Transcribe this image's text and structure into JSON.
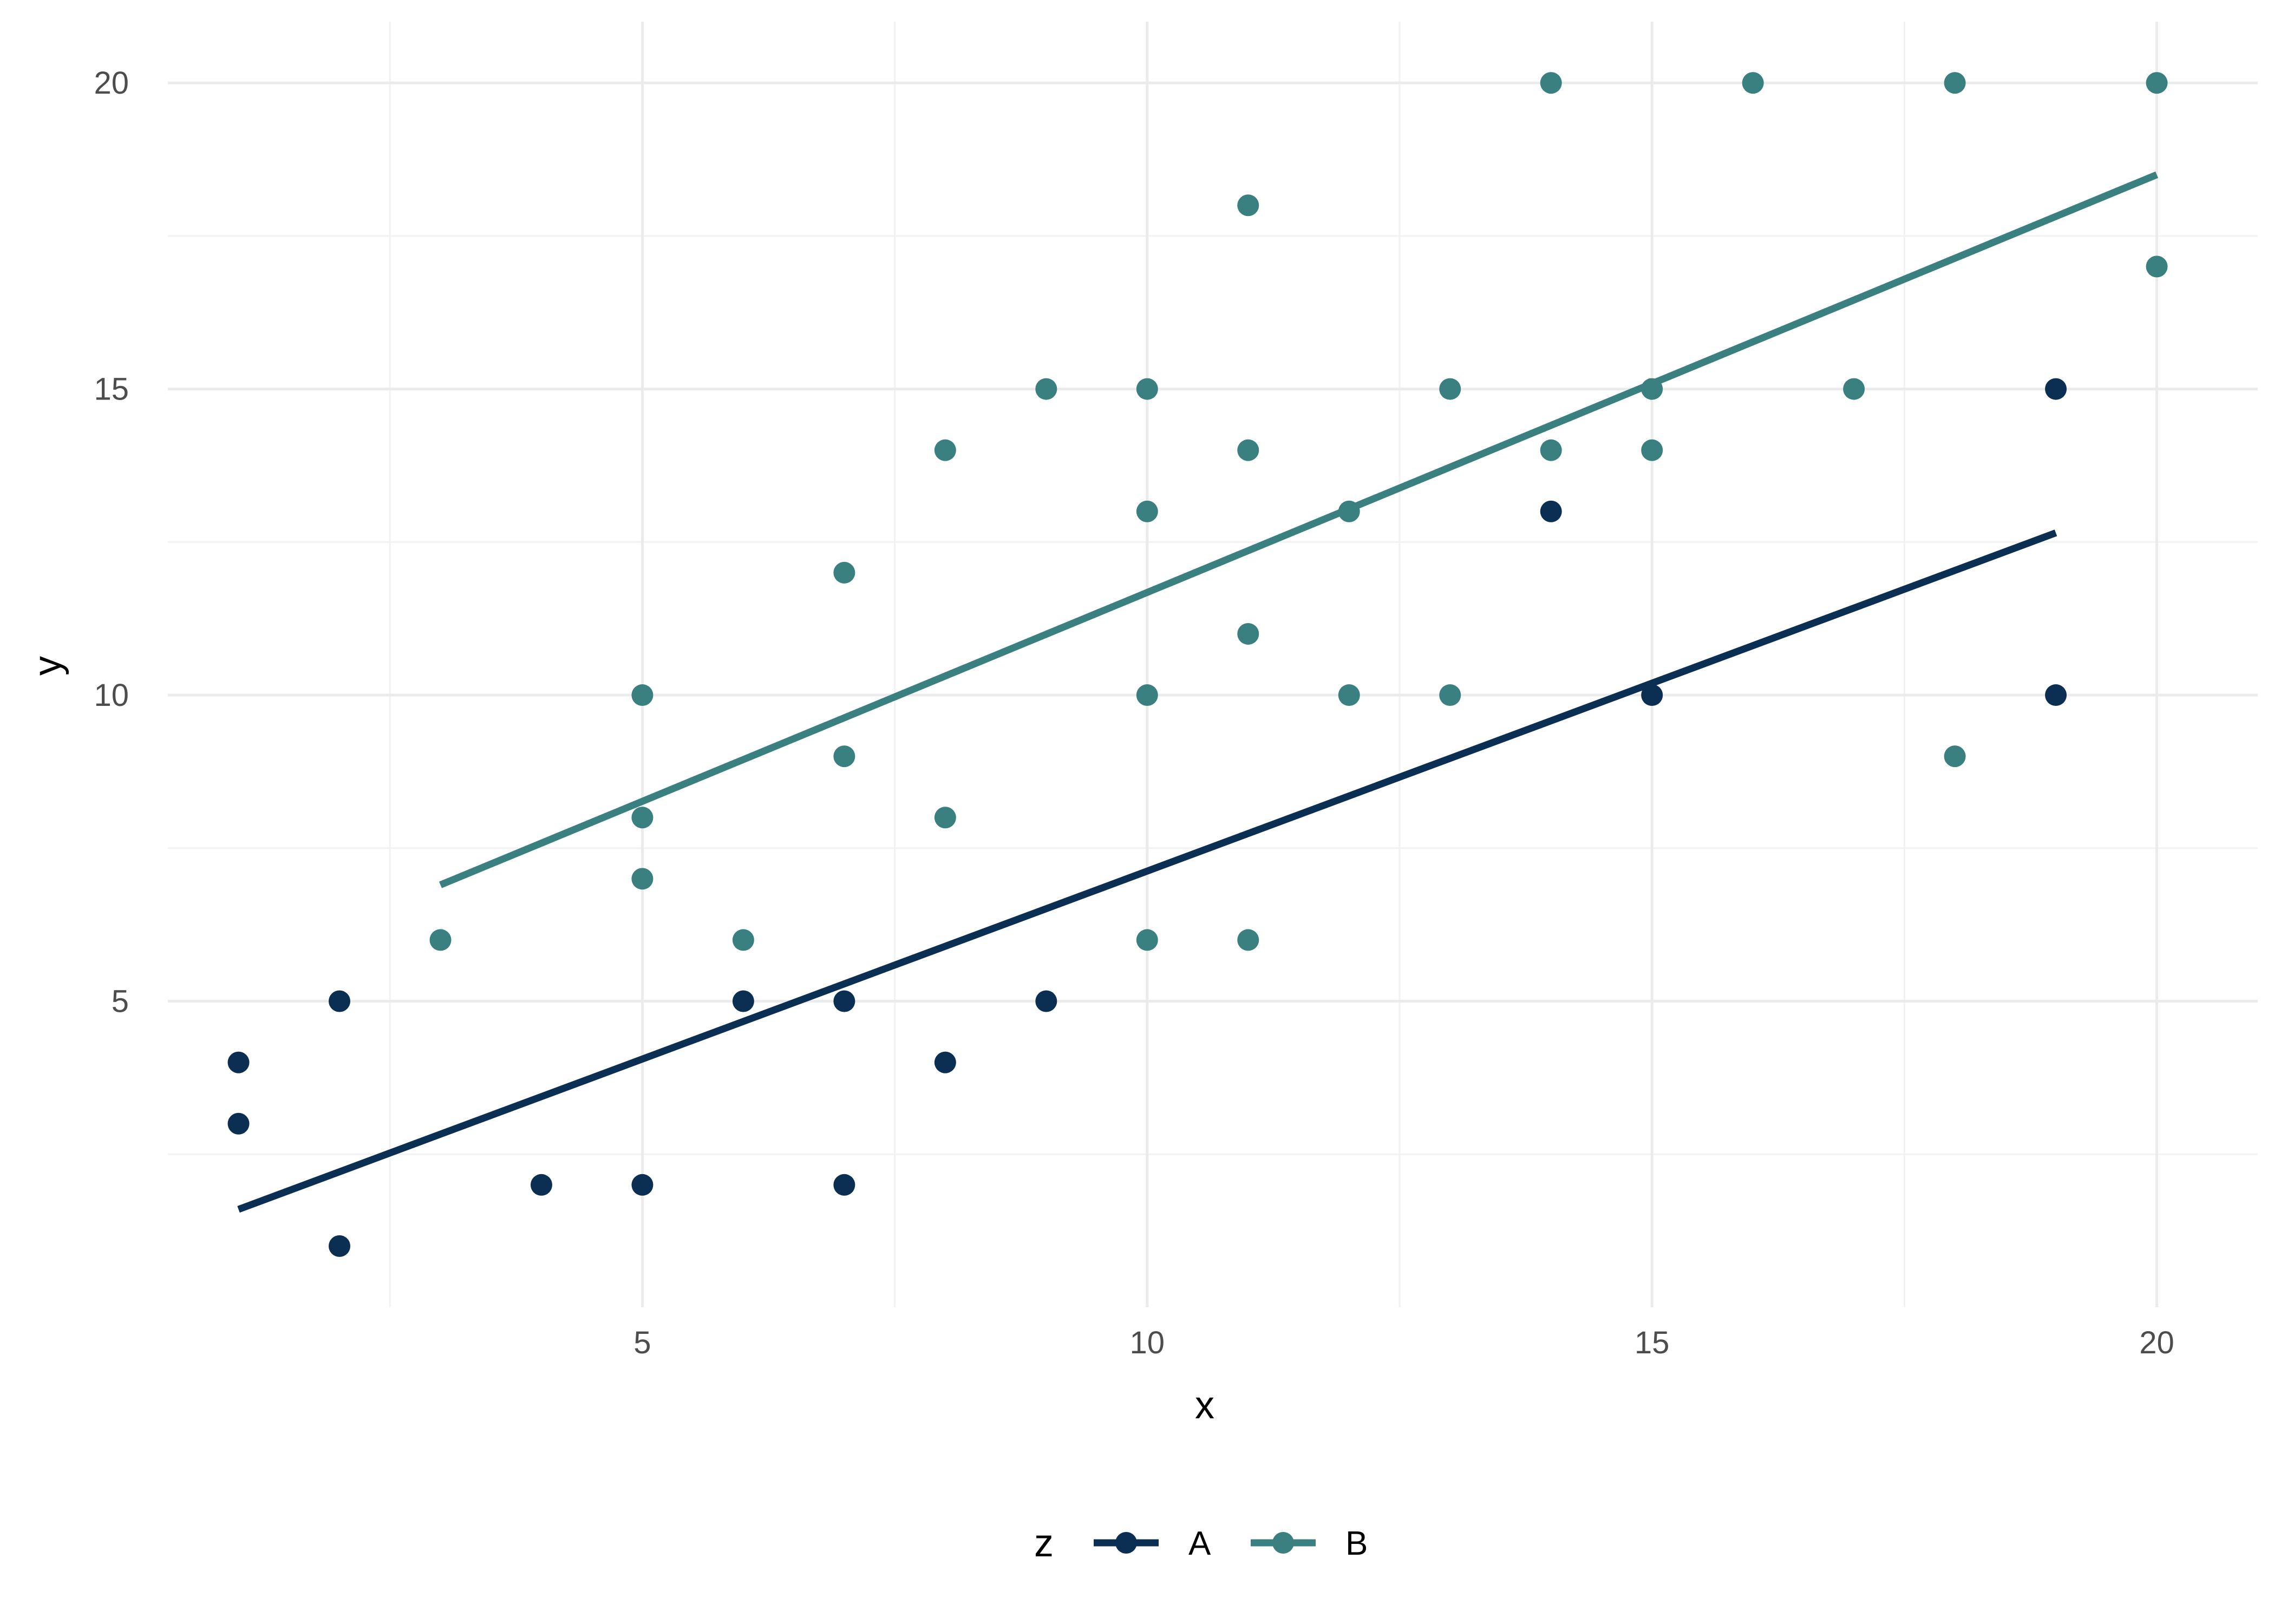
{
  "chart_data": {
    "type": "scatter",
    "xlabel": "x",
    "ylabel": "y",
    "xlim": [
      0.3,
      21.0
    ],
    "ylim": [
      0.0,
      21.0
    ],
    "x_ticks": [
      5,
      10,
      15,
      20
    ],
    "y_ticks": [
      5,
      10,
      15,
      20
    ],
    "grid": true,
    "legend": {
      "title": "z",
      "position": "bottom"
    },
    "series": [
      {
        "name": "A",
        "color": "#0b2f52",
        "points": [
          [
            1,
            4
          ],
          [
            1,
            3
          ],
          [
            2,
            5
          ],
          [
            2,
            1
          ],
          [
            4,
            2
          ],
          [
            5,
            2
          ],
          [
            6,
            5
          ],
          [
            7,
            5
          ],
          [
            7,
            2
          ],
          [
            8,
            4
          ],
          [
            9,
            5
          ],
          [
            14,
            13
          ],
          [
            15,
            10
          ],
          [
            19,
            15
          ],
          [
            19,
            10
          ]
        ],
        "trend_line": [
          [
            1,
            1.6
          ],
          [
            19,
            12.65
          ]
        ]
      },
      {
        "name": "B",
        "color": "#3a8080",
        "points": [
          [
            3,
            6
          ],
          [
            5,
            10
          ],
          [
            5,
            8
          ],
          [
            5,
            7
          ],
          [
            6,
            6
          ],
          [
            7,
            12
          ],
          [
            7,
            9
          ],
          [
            8,
            14
          ],
          [
            8,
            8
          ],
          [
            9,
            15
          ],
          [
            10,
            15
          ],
          [
            10,
            13
          ],
          [
            10,
            10
          ],
          [
            10,
            6
          ],
          [
            11,
            18
          ],
          [
            11,
            14
          ],
          [
            11,
            11
          ],
          [
            11,
            6
          ],
          [
            12,
            13
          ],
          [
            12,
            10
          ],
          [
            13,
            15
          ],
          [
            13,
            10
          ],
          [
            14,
            20
          ],
          [
            14,
            14
          ],
          [
            15,
            15
          ],
          [
            15,
            14
          ],
          [
            16,
            20
          ],
          [
            17,
            15
          ],
          [
            18,
            20
          ],
          [
            18,
            9
          ],
          [
            20,
            20
          ],
          [
            20,
            17
          ]
        ],
        "trend_line": [
          [
            3,
            6.9
          ],
          [
            20,
            18.5
          ]
        ]
      }
    ]
  }
}
